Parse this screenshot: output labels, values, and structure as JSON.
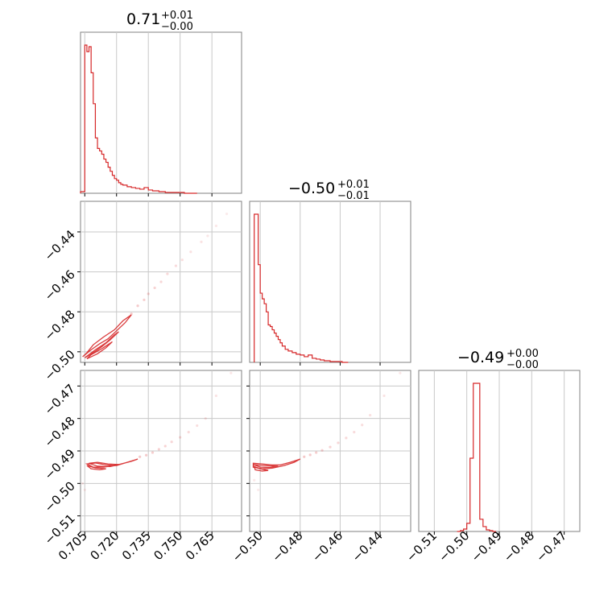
{
  "chart_data": {
    "type": "corner",
    "color": "#d62728",
    "grid": true,
    "titles": [
      {
        "main": "0.71",
        "plus": "+0.01",
        "minus": "−0.00"
      },
      {
        "main": "−0.50",
        "plus": "+0.01",
        "minus": "−0.01"
      },
      {
        "main": "−0.49",
        "plus": "+0.00",
        "minus": "−0.00"
      }
    ],
    "params": [
      {
        "range": [
          0.703,
          0.779
        ],
        "ticks": [
          0.705,
          0.72,
          0.735,
          0.75,
          0.765
        ],
        "tick_labels": [
          "0.705",
          "0.720",
          "0.735",
          "0.750",
          "0.765"
        ]
      },
      {
        "range": [
          -0.5053,
          -0.4247
        ],
        "ticks": [
          -0.5,
          -0.48,
          -0.46,
          -0.44
        ],
        "tick_labels": [
          "−0.50",
          "−0.48",
          "−0.46",
          "−0.44"
        ]
      },
      {
        "range": [
          -0.5148,
          -0.4652
        ],
        "ticks": [
          -0.51,
          -0.5,
          -0.49,
          -0.48,
          -0.47
        ],
        "tick_labels": [
          "−0.51",
          "−0.50",
          "−0.49",
          "−0.48",
          "−0.47"
        ]
      }
    ],
    "hist1": {
      "bin_edges": [
        0.703,
        0.705,
        0.706,
        0.707,
        0.708,
        0.709,
        0.71,
        0.711,
        0.712,
        0.713,
        0.714,
        0.715,
        0.716,
        0.717,
        0.718,
        0.719,
        0.72,
        0.721,
        0.722,
        0.723,
        0.725,
        0.727,
        0.729,
        0.731,
        0.733,
        0.735,
        0.737,
        0.74,
        0.743,
        0.746,
        0.749,
        0.752,
        0.758
      ],
      "counts": [
        2,
        182,
        174,
        180,
        148,
        110,
        68,
        55,
        52,
        48,
        42,
        38,
        32,
        27,
        22,
        18,
        16,
        13,
        11,
        10,
        8,
        7,
        6,
        5,
        7,
        4,
        3,
        2,
        1,
        1,
        1,
        0
      ]
    },
    "hist2": {
      "bin_edges": [
        -0.503,
        -0.501,
        -0.5,
        -0.499,
        -0.498,
        -0.497,
        -0.496,
        -0.495,
        -0.494,
        -0.493,
        -0.492,
        -0.491,
        -0.49,
        -0.489,
        -0.4875,
        -0.486,
        -0.484,
        -0.482,
        -0.48,
        -0.478,
        -0.476,
        -0.474,
        -0.472,
        -0.47,
        -0.468,
        -0.465,
        -0.462,
        -0.459,
        -0.456
      ],
      "counts": [
        182,
        120,
        85,
        78,
        72,
        62,
        46,
        44,
        40,
        36,
        32,
        28,
        24,
        20,
        16,
        14,
        12,
        10,
        9,
        7,
        9,
        5,
        4,
        3,
        2,
        1,
        1,
        0
      ]
    },
    "hist3": {
      "bin_edges": [
        -0.503,
        -0.502,
        -0.501,
        -0.5,
        -0.499,
        -0.498,
        -0.497,
        -0.496,
        -0.495,
        -0.494,
        -0.493,
        -0.492,
        -0.491
      ],
      "counts": [
        0,
        1,
        3,
        10,
        90,
        182,
        182,
        15,
        6,
        2,
        1,
        0
      ]
    },
    "scatter_12": {
      "contours": [
        [
          [
            0.704,
            -0.5025
          ],
          [
            0.708,
            -0.499
          ],
          [
            0.712,
            -0.496
          ],
          [
            0.716,
            -0.4935
          ],
          [
            0.72,
            -0.4895
          ],
          [
            0.724,
            -0.4855
          ],
          [
            0.727,
            -0.4815
          ],
          [
            0.723,
            -0.4845
          ],
          [
            0.719,
            -0.489
          ],
          [
            0.714,
            -0.4925
          ],
          [
            0.709,
            -0.4965
          ],
          [
            0.706,
            -0.5005
          ]
        ],
        [
          [
            0.705,
            -0.503
          ],
          [
            0.709,
            -0.5005
          ],
          [
            0.713,
            -0.4975
          ],
          [
            0.717,
            -0.494
          ],
          [
            0.721,
            -0.49
          ],
          [
            0.719,
            -0.4915
          ],
          [
            0.715,
            -0.4955
          ],
          [
            0.71,
            -0.499
          ]
        ],
        [
          [
            0.706,
            -0.5035
          ],
          [
            0.711,
            -0.501
          ],
          [
            0.715,
            -0.498
          ],
          [
            0.718,
            -0.495
          ],
          [
            0.713,
            -0.4985
          ],
          [
            0.708,
            -0.5015
          ]
        ]
      ],
      "points": [
        [
          0.727,
          -0.481
        ],
        [
          0.73,
          -0.477
        ],
        [
          0.733,
          -0.474
        ],
        [
          0.735,
          -0.471
        ],
        [
          0.738,
          -0.468
        ],
        [
          0.741,
          -0.465
        ],
        [
          0.744,
          -0.461
        ],
        [
          0.748,
          -0.457
        ],
        [
          0.751,
          -0.454
        ],
        [
          0.755,
          -0.45
        ],
        [
          0.76,
          -0.445
        ],
        [
          0.763,
          -0.442
        ],
        [
          0.767,
          -0.437
        ],
        [
          0.772,
          -0.431
        ]
      ]
    },
    "scatter_13": {
      "contours": [
        [
          [
            0.706,
            -0.494
          ],
          [
            0.71,
            -0.4937
          ],
          [
            0.715,
            -0.4943
          ],
          [
            0.72,
            -0.4945
          ],
          [
            0.725,
            -0.4935
          ],
          [
            0.73,
            -0.4925
          ],
          [
            0.727,
            -0.4932
          ],
          [
            0.721,
            -0.4942
          ],
          [
            0.714,
            -0.495
          ],
          [
            0.709,
            -0.495
          ]
        ],
        [
          [
            0.707,
            -0.4938
          ],
          [
            0.711,
            -0.4935
          ],
          [
            0.716,
            -0.494
          ],
          [
            0.721,
            -0.4942
          ],
          [
            0.717,
            -0.4948
          ],
          [
            0.711,
            -0.4947
          ]
        ],
        [
          [
            0.706,
            -0.4945
          ],
          [
            0.71,
            -0.4952
          ],
          [
            0.715,
            -0.4955
          ],
          [
            0.712,
            -0.4958
          ],
          [
            0.708,
            -0.4955
          ]
        ]
      ],
      "points": [
        [
          0.731,
          -0.4918
        ],
        [
          0.734,
          -0.4913
        ],
        [
          0.737,
          -0.4905
        ],
        [
          0.74,
          -0.4895
        ],
        [
          0.743,
          -0.4885
        ],
        [
          0.746,
          -0.4872
        ],
        [
          0.75,
          -0.4858
        ],
        [
          0.754,
          -0.4842
        ],
        [
          0.758,
          -0.4822
        ],
        [
          0.762,
          -0.48
        ],
        [
          0.767,
          -0.473
        ],
        [
          0.774,
          -0.466
        ],
        [
          0.704,
          -0.5
        ],
        [
          0.705,
          -0.502
        ]
      ]
    },
    "scatter_23": {
      "contours": [
        [
          [
            -0.5035,
            -0.4938
          ],
          [
            -0.499,
            -0.494
          ],
          [
            -0.494,
            -0.4943
          ],
          [
            -0.49,
            -0.4943
          ],
          [
            -0.485,
            -0.4935
          ],
          [
            -0.48,
            -0.4925
          ],
          [
            -0.483,
            -0.4935
          ],
          [
            -0.488,
            -0.4945
          ],
          [
            -0.494,
            -0.4953
          ],
          [
            -0.499,
            -0.4955
          ],
          [
            -0.5035,
            -0.495
          ]
        ],
        [
          [
            -0.5035,
            -0.4942
          ],
          [
            -0.5,
            -0.4944
          ],
          [
            -0.495,
            -0.4946
          ],
          [
            -0.491,
            -0.4947
          ],
          [
            -0.495,
            -0.4951
          ],
          [
            -0.5,
            -0.495
          ]
        ],
        [
          [
            -0.503,
            -0.4948
          ],
          [
            -0.5,
            -0.4955
          ],
          [
            -0.496,
            -0.496
          ],
          [
            -0.499,
            -0.4962
          ],
          [
            -0.5025,
            -0.4958
          ]
        ]
      ],
      "points": [
        [
          -0.478,
          -0.4918
        ],
        [
          -0.475,
          -0.4912
        ],
        [
          -0.472,
          -0.4905
        ],
        [
          -0.469,
          -0.4898
        ],
        [
          -0.465,
          -0.4888
        ],
        [
          -0.461,
          -0.4875
        ],
        [
          -0.457,
          -0.486
        ],
        [
          -0.453,
          -0.4842
        ],
        [
          -0.449,
          -0.482
        ],
        [
          -0.445,
          -0.479
        ],
        [
          -0.438,
          -0.473
        ],
        [
          -0.43,
          -0.466
        ],
        [
          -0.503,
          -0.499
        ],
        [
          -0.501,
          -0.502
        ]
      ]
    }
  }
}
